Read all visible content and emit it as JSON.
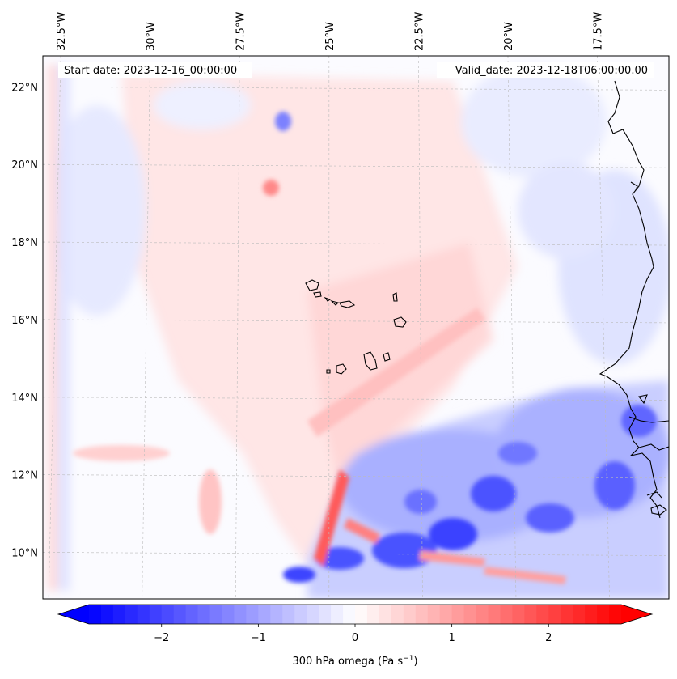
{
  "map": {
    "start_label": "Start date: 2023-12-16_00:00:00",
    "valid_label": "Valid_date: 2023-12-18T06:00:00.00",
    "lon_range": [
      -33.0,
      -15.5
    ],
    "lat_range": [
      8.8,
      22.8
    ],
    "lon_ticks": [
      {
        "value": -32.5,
        "label": "32.5°W"
      },
      {
        "value": -30.0,
        "label": "30°W"
      },
      {
        "value": -27.5,
        "label": "27.5°W"
      },
      {
        "value": -25.0,
        "label": "25°W"
      },
      {
        "value": -22.5,
        "label": "22.5°W"
      },
      {
        "value": -20.0,
        "label": "20°W"
      },
      {
        "value": -17.5,
        "label": "17.5°W"
      }
    ],
    "lat_ticks": [
      {
        "value": 10,
        "label": "10°N"
      },
      {
        "value": 12,
        "label": "12°N"
      },
      {
        "value": 14,
        "label": "14°N"
      },
      {
        "value": 16,
        "label": "16°N"
      },
      {
        "value": 18,
        "label": "18°N"
      },
      {
        "value": 20,
        "label": "20°N"
      },
      {
        "value": 22,
        "label": "22°N"
      }
    ],
    "grid": true,
    "field": "300 hPa omega"
  },
  "colorbar": {
    "label": "300 hPa omega (Pa s",
    "label_sup": "−1",
    "label_close": ")",
    "vmin": -2.75,
    "vmax": 2.75,
    "ticks": [
      {
        "value": -2,
        "label": "−2"
      },
      {
        "value": -1,
        "label": "−1"
      },
      {
        "value": 0,
        "label": "0"
      },
      {
        "value": 1,
        "label": "1"
      },
      {
        "value": 2,
        "label": "2"
      }
    ],
    "colors": {
      "low": "#0000ff",
      "mid": "#ffffff",
      "high": "#ff0000"
    },
    "extend": "both"
  }
}
